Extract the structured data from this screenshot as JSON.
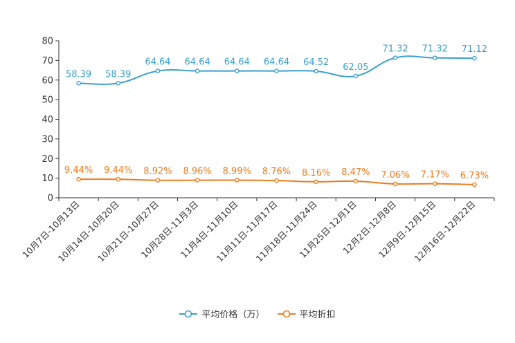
{
  "chart_data": {
    "type": "line",
    "title": "",
    "xlabel": "",
    "ylabel": "",
    "ylim": [
      0,
      80
    ],
    "yticks": [
      0,
      10,
      20,
      30,
      40,
      50,
      60,
      70,
      80
    ],
    "categories": [
      "10月7日-10月13日",
      "10月14日-10月20日",
      "10月21日-10月27日",
      "10月28日-11月3日",
      "11月4日-11月10日",
      "11月11日-11月17日",
      "11月18日-11月24日",
      "11月25日-12月1日",
      "12月2日-12月8日",
      "12月9日-12月15日",
      "12月16日-12月22日"
    ],
    "series": [
      {
        "name": "平均价格（万）",
        "color": "#3a9fd0",
        "values": [
          58.39,
          58.39,
          64.64,
          64.64,
          64.64,
          64.64,
          64.52,
          62.05,
          71.32,
          71.32,
          71.12
        ],
        "labels": [
          "58.39",
          "58.39",
          "64.64",
          "64.64",
          "64.64",
          "64.64",
          "64.52",
          "62.05",
          "71.32",
          "71.32",
          "71.12"
        ]
      },
      {
        "name": "平均折扣",
        "color": "#f07a1c",
        "values": [
          9.44,
          9.44,
          8.92,
          8.96,
          8.99,
          8.76,
          8.16,
          8.47,
          7.06,
          7.17,
          6.73
        ],
        "labels": [
          "9.44%",
          "9.44%",
          "8.92%",
          "8.96%",
          "8.99%",
          "8.76%",
          "8.16%",
          "8.47%",
          "7.06%",
          "7.17%",
          "6.73%"
        ]
      }
    ],
    "legend_position": "bottom-center"
  }
}
